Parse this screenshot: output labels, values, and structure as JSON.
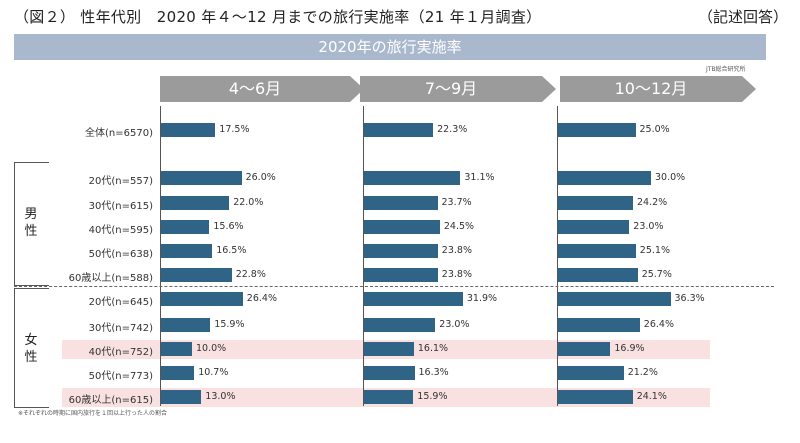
{
  "header": {
    "title": "（図２） 性年代別　2020 年４～12 月までの旅行実施率（21 年１月調査）",
    "note": "（記述回答）",
    "banner": "2020年の旅行実施率",
    "source": "JTB総合研究所"
  },
  "footnote": "※それぞれの時期に国内旅行を１回以上行った人の割合",
  "groups": {
    "male": "男性",
    "female": "女性"
  },
  "colors": {
    "bar": "#2f6486",
    "banner": "#a9b8cc",
    "period_header": "#9b9b9b",
    "highlight": "#f9e1e1"
  },
  "chart_data": {
    "type": "bar",
    "orientation": "horizontal",
    "categories": [
      "全体(n=6570)",
      "20代(n=557)",
      "30代(n=615)",
      "40代(n=595)",
      "50代(n=638)",
      "60歳以上(n=588)",
      "20代(n=645)",
      "30代(n=742)",
      "40代(n=752)",
      "50代(n=773)",
      "60歳以上(n=615)"
    ],
    "series": [
      {
        "name": "4～6月",
        "values": [
          17.5,
          26.0,
          22.0,
          15.6,
          16.5,
          22.8,
          26.4,
          15.9,
          10.0,
          10.7,
          13.0
        ],
        "labels": [
          "17.5%",
          "26.0%",
          "22.0%",
          "15.6%",
          "16.5%",
          "22.8%",
          "26.4%",
          "15.9%",
          "10.0%",
          "10.7%",
          "13.0%"
        ]
      },
      {
        "name": "7～9月",
        "values": [
          22.3,
          31.1,
          23.7,
          24.5,
          23.8,
          23.8,
          31.9,
          23.0,
          16.1,
          16.3,
          15.9
        ],
        "labels": [
          "22.3%",
          "31.1%",
          "23.7%",
          "24.5%",
          "23.8%",
          "23.8%",
          "31.9%",
          "23.0%",
          "16.1%",
          "16.3%",
          "15.9%"
        ]
      },
      {
        "name": "10～12月",
        "values": [
          25.0,
          30.0,
          24.2,
          23.0,
          25.1,
          25.7,
          36.3,
          26.4,
          16.9,
          21.2,
          24.1
        ],
        "labels": [
          "25.0%",
          "30.0%",
          "24.2%",
          "23.0%",
          "25.1%",
          "25.7%",
          "36.3%",
          "26.4%",
          "16.9%",
          "21.2%",
          "24.1%"
        ]
      }
    ],
    "groups": {
      "男性": [
        1,
        5
      ],
      "女性": [
        6,
        10
      ]
    },
    "highlighted_rows": [
      8,
      10
    ],
    "xlim": [
      0,
      40
    ],
    "grid": false,
    "legend": "none"
  }
}
